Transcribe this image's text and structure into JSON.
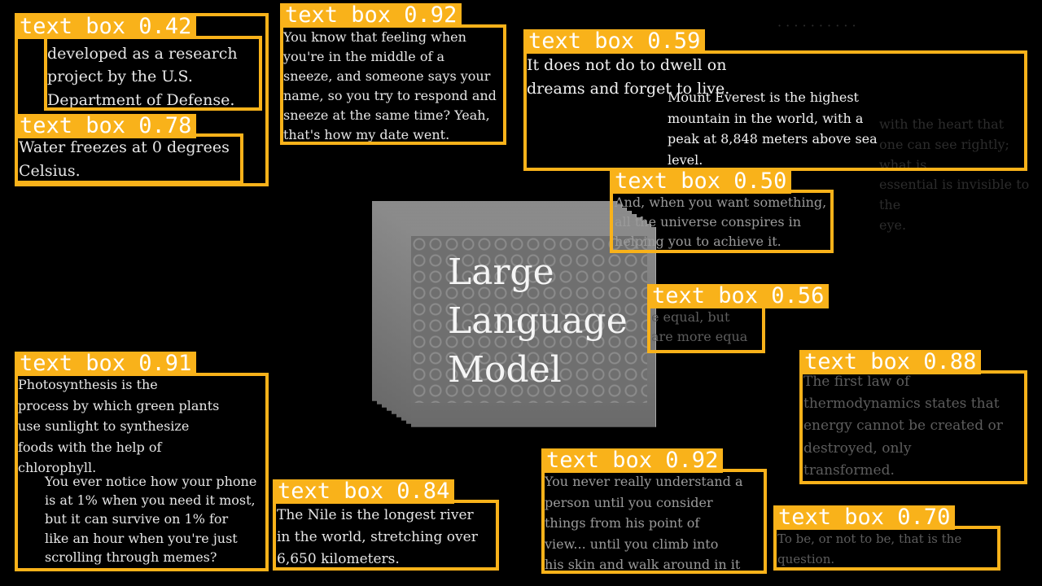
{
  "center_title": "Large\nLanguage\nModel",
  "accent_color": "#f9b21a",
  "background_texts": [
    "It does not do to dwell on\ndreams and forget to live.",
    "Mount Everest is the highest\nmountain in the world, with a\npeak at 8,848 meters above sea\nlevel.",
    "with the heart that\none can see rightly; what is\nessential is invisible to the\neye."
  ],
  "detections": [
    {
      "text": "inally\ndeveloped as a research\nproject by the U.S.\nDepartment of Defense.",
      "label": "text box 0.42"
    },
    {
      "text": "You know that feeling when\nyou're in the middle of a\nsneeze, and someone says your\nname, so you try to respond and\nsneeze at the same time? Yeah,\nthat's how my date went.",
      "label": "text box 0.92"
    },
    {
      "text": "",
      "label": "text box 0.59"
    },
    {
      "text": "Water freezes at 0 degrees\nCelsius.",
      "label": "text box 0.78"
    },
    {
      "text": "And, when you want something,\nall the universe conspires in\nhelping you to achieve it.",
      "label": "text box 0.50"
    },
    {
      "text": "e equal, but\nare more equa",
      "label": "text box 0.56"
    },
    {
      "text": "The first law of\nthermodynamics states that\nenergy cannot be created or\ndestroyed, only\ntransformed.",
      "label": "text box 0.88"
    },
    {
      "text": "Photosynthesis is the\nprocess by which green plants\nuse sunlight to synthesize\nfoods with the help of\nchlorophyll.",
      "label": "text box 0.91"
    },
    {
      "text": "You ever notice how your phone\nis at 1% when you need it most,\nbut it can survive on 1% for\nlike an hour when you're just\nscrolling through memes?",
      "label": ""
    },
    {
      "text": "The Nile is the longest river\nin the world, stretching over\n6,650 kilometers.",
      "label": "text box 0.84"
    },
    {
      "text": "You never really understand a\nperson until you consider\nthings from his point of\nview... until you climb into\nhis skin and walk around in it",
      "label": "text box 0.92"
    },
    {
      "text": "To be, or not to be, that is the\nquestion.",
      "label": "text box 0.70"
    }
  ]
}
